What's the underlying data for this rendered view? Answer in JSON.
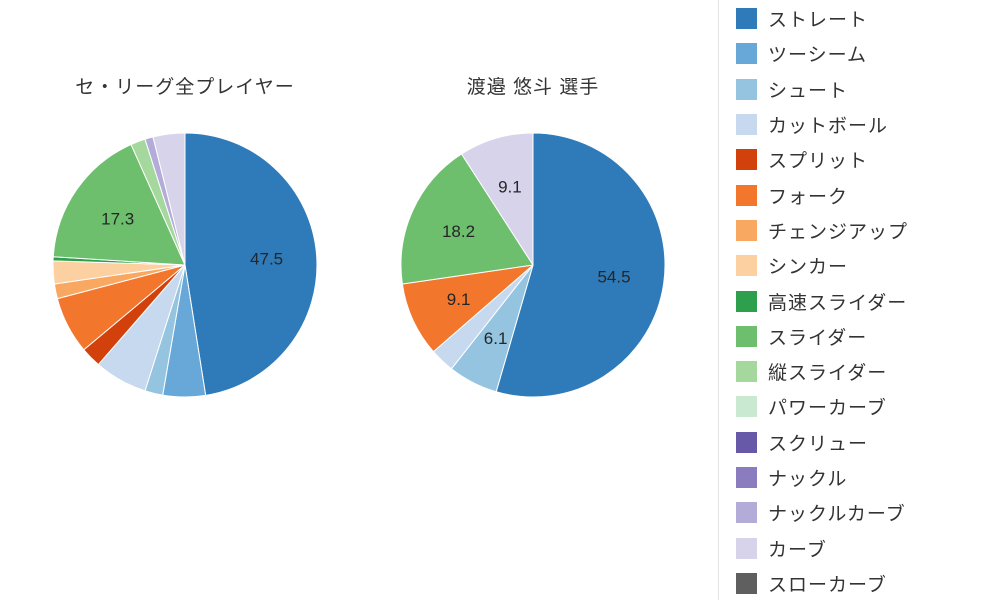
{
  "page": {
    "background": "#ffffff"
  },
  "chart_data": [
    {
      "type": "pie",
      "title": "セ・リーグ全プレイヤー",
      "start_angle_deg": 0,
      "direction": "clockwise",
      "slices": [
        {
          "name": "ストレート",
          "value": 47.5,
          "display": "47.5"
        },
        {
          "name": "ツーシーム",
          "value": 5.2,
          "display": ""
        },
        {
          "name": "シュート",
          "value": 2.2,
          "display": ""
        },
        {
          "name": "カットボール",
          "value": 6.5,
          "display": ""
        },
        {
          "name": "スプリット",
          "value": 2.5,
          "display": ""
        },
        {
          "name": "フォーク",
          "value": 7.0,
          "display": ""
        },
        {
          "name": "チェンジアップ",
          "value": 1.8,
          "display": ""
        },
        {
          "name": "シンカー",
          "value": 2.8,
          "display": ""
        },
        {
          "name": "高速スライダー",
          "value": 0.5,
          "display": ""
        },
        {
          "name": "スライダー",
          "value": 17.3,
          "display": "17.3"
        },
        {
          "name": "縦スライダー",
          "value": 1.8,
          "display": ""
        },
        {
          "name": "ナックルカーブ",
          "value": 1.0,
          "display": ""
        },
        {
          "name": "カーブ",
          "value": 3.9,
          "display": ""
        }
      ]
    },
    {
      "type": "pie",
      "title": "渡邉 悠斗 選手",
      "start_angle_deg": 0,
      "direction": "clockwise",
      "slices": [
        {
          "name": "ストレート",
          "value": 54.5,
          "display": "54.5"
        },
        {
          "name": "シュート",
          "value": 6.1,
          "display": "6.1"
        },
        {
          "name": "カットボール",
          "value": 3.0,
          "display": ""
        },
        {
          "name": "フォーク",
          "value": 9.1,
          "display": "9.1"
        },
        {
          "name": "スライダー",
          "value": 18.2,
          "display": "18.2"
        },
        {
          "name": "カーブ",
          "value": 9.1,
          "display": "9.1"
        }
      ]
    }
  ],
  "legend": {
    "position": "right",
    "entries": [
      {
        "label": "ストレート",
        "color": "#2f7ab8"
      },
      {
        "label": "ツーシーム",
        "color": "#68a8d8"
      },
      {
        "label": "シュート",
        "color": "#94c4df"
      },
      {
        "label": "カットボール",
        "color": "#c7d9ef"
      },
      {
        "label": "スプリット",
        "color": "#d2410c"
      },
      {
        "label": "フォーク",
        "color": "#f3762d"
      },
      {
        "label": "チェンジアップ",
        "color": "#f9a861"
      },
      {
        "label": "シンカー",
        "color": "#fcd0a1"
      },
      {
        "label": "高速スライダー",
        "color": "#2d9f4d"
      },
      {
        "label": "スライダー",
        "color": "#6dbf6d"
      },
      {
        "label": "縦スライダー",
        "color": "#a5d89d"
      },
      {
        "label": "パワーカーブ",
        "color": "#c9ead0"
      },
      {
        "label": "スクリュー",
        "color": "#6858a8"
      },
      {
        "label": "ナックル",
        "color": "#8b7cc0"
      },
      {
        "label": "ナックルカーブ",
        "color": "#b3abd8"
      },
      {
        "label": "カーブ",
        "color": "#d6d3ea"
      },
      {
        "label": "スローカーブ",
        "color": "#5f5f5f"
      }
    ]
  }
}
